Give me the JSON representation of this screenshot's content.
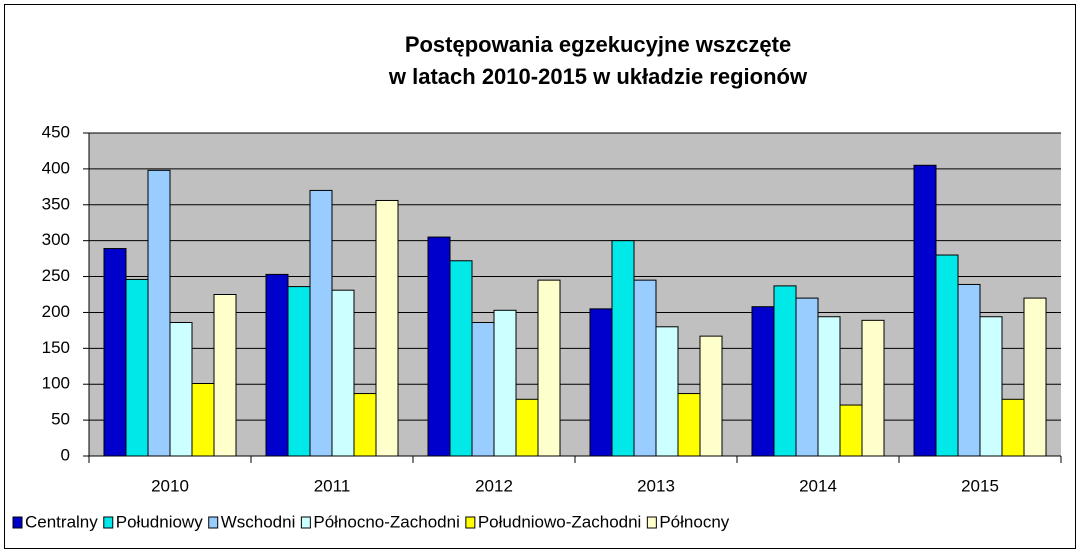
{
  "chart_data": {
    "type": "bar",
    "title": [
      "Postępowania egzekucyjne wszczęte",
      "w  latach 2010-2015 w układzie regionów"
    ],
    "categories": [
      "2010",
      "2011",
      "2012",
      "2013",
      "2014",
      "2015"
    ],
    "series": [
      {
        "name": "Centralny",
        "color": "#0000cc",
        "values": [
          289,
          253,
          305,
          205,
          208,
          405
        ]
      },
      {
        "name": "Południowy",
        "color": "#00e8e8",
        "values": [
          246,
          236,
          272,
          300,
          237,
          280
        ]
      },
      {
        "name": "Wschodni",
        "color": "#99ccff",
        "values": [
          398,
          370,
          186,
          245,
          220,
          239
        ]
      },
      {
        "name": "Północno-Zachodni",
        "color": "#ccffff",
        "values": [
          186,
          231,
          203,
          180,
          194,
          194
        ]
      },
      {
        "name": "Południowo-Zachodni",
        "color": "#ffff00",
        "values": [
          101,
          87,
          79,
          87,
          71,
          79
        ]
      },
      {
        "name": "Północny",
        "color": "#ffffcc",
        "values": [
          225,
          356,
          245,
          167,
          189,
          220
        ]
      }
    ],
    "ylim": [
      0,
      450
    ],
    "yticks": [
      0,
      50,
      100,
      150,
      200,
      250,
      300,
      350,
      400,
      450
    ],
    "grid": true,
    "legend": "bottom"
  }
}
